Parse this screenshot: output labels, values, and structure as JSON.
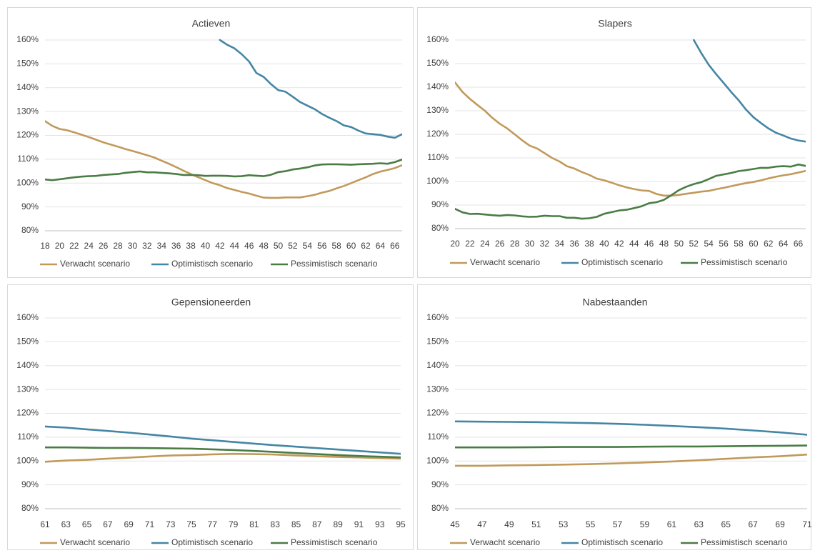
{
  "colors": {
    "verwacht": "#c19a5b",
    "optimistisch": "#4486a4",
    "pessimistisch": "#4a7c45"
  },
  "chart_data": [
    {
      "type": "line",
      "title": "Actieven",
      "ylim": [
        0.8,
        1.6
      ],
      "yticks": [
        "80%",
        "90%",
        "100%",
        "110%",
        "120%",
        "130%",
        "140%",
        "150%",
        "160%"
      ],
      "xmin": 18,
      "xmax": 67,
      "xtick_step": 2,
      "grid": true,
      "legend": "bottom",
      "series": [
        {
          "name": "Verwacht scenario",
          "color": "verwacht",
          "x": [
            18,
            19,
            20,
            21,
            22,
            23,
            24,
            25,
            26,
            27,
            28,
            29,
            30,
            31,
            32,
            33,
            34,
            35,
            36,
            37,
            38,
            39,
            40,
            41,
            42,
            43,
            44,
            45,
            46,
            47,
            48,
            49,
            50,
            51,
            52,
            53,
            54,
            55,
            56,
            57,
            58,
            59,
            60,
            61,
            62,
            63,
            64,
            65,
            66,
            67
          ],
          "y": [
            1.26,
            1.24,
            1.227,
            1.222,
            1.213,
            1.203,
            1.193,
            1.182,
            1.171,
            1.162,
            1.153,
            1.143,
            1.135,
            1.126,
            1.117,
            1.107,
            1.094,
            1.081,
            1.067,
            1.052,
            1.038,
            1.025,
            1.012,
            1.0,
            0.991,
            0.979,
            0.971,
            0.963,
            0.956,
            0.947,
            0.939,
            0.938,
            0.938,
            0.94,
            0.94,
            0.94,
            0.945,
            0.951,
            0.96,
            0.967,
            0.978,
            0.988,
            1.0,
            1.012,
            1.024,
            1.038,
            1.048,
            1.055,
            1.063,
            1.075
          ]
        },
        {
          "name": "Optimistisch scenario",
          "color": "optimistisch",
          "x": [
            42,
            43,
            44,
            45,
            46,
            47,
            48,
            49,
            50,
            51,
            52,
            53,
            54,
            55,
            56,
            57,
            58,
            59,
            60,
            61,
            62,
            63,
            64,
            65,
            66,
            67
          ],
          "y": [
            1.6,
            1.58,
            1.565,
            1.54,
            1.51,
            1.462,
            1.445,
            1.415,
            1.39,
            1.383,
            1.362,
            1.34,
            1.325,
            1.31,
            1.29,
            1.274,
            1.26,
            1.242,
            1.235,
            1.22,
            1.208,
            1.205,
            1.202,
            1.195,
            1.19,
            1.205
          ]
        },
        {
          "name": "Pessimistisch scenario",
          "color": "pessimistisch",
          "x": [
            18,
            19,
            20,
            21,
            22,
            23,
            24,
            25,
            26,
            27,
            28,
            29,
            30,
            31,
            32,
            33,
            34,
            35,
            36,
            37,
            38,
            39,
            40,
            41,
            42,
            43,
            44,
            45,
            46,
            47,
            48,
            49,
            50,
            51,
            52,
            53,
            54,
            55,
            56,
            57,
            58,
            59,
            60,
            61,
            62,
            63,
            64,
            65,
            66,
            67
          ],
          "y": [
            1.015,
            1.012,
            1.016,
            1.02,
            1.024,
            1.027,
            1.029,
            1.03,
            1.034,
            1.036,
            1.038,
            1.043,
            1.046,
            1.049,
            1.045,
            1.045,
            1.043,
            1.041,
            1.038,
            1.034,
            1.034,
            1.033,
            1.03,
            1.031,
            1.031,
            1.03,
            1.028,
            1.029,
            1.033,
            1.031,
            1.029,
            1.035,
            1.046,
            1.05,
            1.057,
            1.061,
            1.066,
            1.074,
            1.078,
            1.079,
            1.079,
            1.078,
            1.077,
            1.079,
            1.08,
            1.081,
            1.083,
            1.081,
            1.088,
            1.099
          ]
        }
      ]
    },
    {
      "type": "line",
      "title": "Slapers",
      "ylim": [
        0.8,
        1.6
      ],
      "yticks": [
        "80%",
        "90%",
        "100%",
        "110%",
        "120%",
        "130%",
        "140%",
        "150%",
        "160%"
      ],
      "xmin": 20,
      "xmax": 67,
      "xtick_step": 2,
      "grid": true,
      "legend": "bottom",
      "series": [
        {
          "name": "Verwacht scenario",
          "color": "verwacht",
          "x": [
            20,
            21,
            22,
            23,
            24,
            25,
            26,
            27,
            28,
            29,
            30,
            31,
            32,
            33,
            34,
            35,
            36,
            37,
            38,
            39,
            40,
            41,
            42,
            43,
            44,
            45,
            46,
            47,
            48,
            49,
            50,
            51,
            52,
            53,
            54,
            55,
            56,
            57,
            58,
            59,
            60,
            61,
            62,
            63,
            64,
            65,
            66,
            67
          ],
          "y": [
            1.42,
            1.38,
            1.35,
            1.325,
            1.3,
            1.27,
            1.245,
            1.225,
            1.2,
            1.175,
            1.152,
            1.14,
            1.12,
            1.1,
            1.085,
            1.065,
            1.055,
            1.04,
            1.028,
            1.012,
            1.005,
            0.995,
            0.984,
            0.975,
            0.968,
            0.962,
            0.96,
            0.947,
            0.94,
            0.94,
            0.943,
            0.948,
            0.952,
            0.957,
            0.96,
            0.967,
            0.973,
            0.98,
            0.987,
            0.993,
            0.998,
            1.005,
            1.013,
            1.02,
            1.026,
            1.031,
            1.038,
            1.045
          ]
        },
        {
          "name": "Optimistisch scenario",
          "color": "optimistisch",
          "x": [
            52,
            53,
            54,
            55,
            56,
            57,
            58,
            59,
            60,
            61,
            62,
            63,
            64,
            65,
            66,
            67
          ],
          "y": [
            1.6,
            1.545,
            1.495,
            1.455,
            1.418,
            1.38,
            1.345,
            1.305,
            1.272,
            1.248,
            1.225,
            1.207,
            1.195,
            1.182,
            1.174,
            1.169
          ]
        },
        {
          "name": "Pessimistisch scenario",
          "color": "pessimistisch",
          "x": [
            20,
            21,
            22,
            23,
            24,
            25,
            26,
            27,
            28,
            29,
            30,
            31,
            32,
            33,
            34,
            35,
            36,
            37,
            38,
            39,
            40,
            41,
            42,
            43,
            44,
            45,
            46,
            47,
            48,
            49,
            50,
            51,
            52,
            53,
            54,
            55,
            56,
            57,
            58,
            59,
            60,
            61,
            62,
            63,
            64,
            65,
            66,
            67
          ],
          "y": [
            0.884,
            0.869,
            0.862,
            0.863,
            0.86,
            0.857,
            0.855,
            0.858,
            0.856,
            0.852,
            0.85,
            0.851,
            0.855,
            0.853,
            0.853,
            0.846,
            0.846,
            0.842,
            0.844,
            0.85,
            0.863,
            0.87,
            0.877,
            0.88,
            0.887,
            0.895,
            0.908,
            0.912,
            0.922,
            0.942,
            0.963,
            0.978,
            0.989,
            0.997,
            1.01,
            1.024,
            1.03,
            1.036,
            1.044,
            1.048,
            1.053,
            1.058,
            1.058,
            1.063,
            1.065,
            1.063,
            1.072,
            1.066
          ]
        }
      ]
    },
    {
      "type": "line",
      "title": "Gepensioneerden",
      "ylim": [
        0.8,
        1.6
      ],
      "yticks": [
        "80%",
        "90%",
        "100%",
        "110%",
        "120%",
        "130%",
        "140%",
        "150%",
        "160%"
      ],
      "xmin": 61,
      "xmax": 95,
      "xtick_step": 2,
      "grid": true,
      "legend": "bottom",
      "series": [
        {
          "name": "Verwacht scenario",
          "color": "verwacht",
          "x": [
            61,
            63,
            65,
            67,
            69,
            71,
            73,
            75,
            77,
            79,
            81,
            83,
            85,
            87,
            89,
            91,
            93,
            95
          ],
          "y": [
            0.997,
            1.002,
            1.005,
            1.01,
            1.014,
            1.019,
            1.023,
            1.025,
            1.028,
            1.03,
            1.029,
            1.027,
            1.023,
            1.02,
            1.017,
            1.015,
            1.012,
            1.01
          ]
        },
        {
          "name": "Optimistisch scenario",
          "color": "optimistisch",
          "x": [
            61,
            63,
            65,
            67,
            69,
            71,
            73,
            75,
            77,
            79,
            81,
            83,
            85,
            87,
            89,
            91,
            93,
            95
          ],
          "y": [
            1.145,
            1.14,
            1.133,
            1.126,
            1.119,
            1.111,
            1.103,
            1.094,
            1.087,
            1.08,
            1.073,
            1.066,
            1.06,
            1.054,
            1.048,
            1.042,
            1.036,
            1.03
          ]
        },
        {
          "name": "Pessimistisch scenario",
          "color": "pessimistisch",
          "x": [
            61,
            63,
            65,
            67,
            69,
            71,
            73,
            75,
            77,
            79,
            81,
            83,
            85,
            87,
            89,
            91,
            93,
            95
          ],
          "y": [
            1.057,
            1.057,
            1.056,
            1.055,
            1.055,
            1.054,
            1.053,
            1.052,
            1.049,
            1.046,
            1.042,
            1.038,
            1.033,
            1.029,
            1.025,
            1.021,
            1.018,
            1.015
          ]
        }
      ]
    },
    {
      "type": "line",
      "title": "Nabestaanden",
      "ylim": [
        0.8,
        1.6
      ],
      "yticks": [
        "80%",
        "90%",
        "100%",
        "110%",
        "120%",
        "130%",
        "140%",
        "150%",
        "160%"
      ],
      "xmin": 45,
      "xmax": 71,
      "xtick_step": 2,
      "grid": true,
      "legend": "bottom",
      "series": [
        {
          "name": "Verwacht scenario",
          "color": "verwacht",
          "x": [
            45,
            47,
            49,
            51,
            53,
            55,
            57,
            59,
            61,
            63,
            65,
            67,
            69,
            71
          ],
          "y": [
            0.98,
            0.98,
            0.982,
            0.983,
            0.985,
            0.987,
            0.99,
            0.994,
            0.998,
            1.003,
            1.009,
            1.015,
            1.02,
            1.027
          ]
        },
        {
          "name": "Optimistisch scenario",
          "color": "optimistisch",
          "x": [
            45,
            47,
            49,
            51,
            53,
            55,
            57,
            59,
            61,
            63,
            65,
            67,
            69,
            71
          ],
          "y": [
            1.166,
            1.165,
            1.164,
            1.163,
            1.161,
            1.159,
            1.156,
            1.152,
            1.147,
            1.142,
            1.136,
            1.128,
            1.12,
            1.11
          ]
        },
        {
          "name": "Pessimistisch scenario",
          "color": "pessimistisch",
          "x": [
            45,
            47,
            49,
            51,
            53,
            55,
            57,
            59,
            61,
            63,
            65,
            67,
            69,
            71
          ],
          "y": [
            1.057,
            1.057,
            1.057,
            1.058,
            1.059,
            1.059,
            1.059,
            1.06,
            1.061,
            1.061,
            1.062,
            1.063,
            1.064,
            1.065
          ]
        }
      ]
    }
  ]
}
